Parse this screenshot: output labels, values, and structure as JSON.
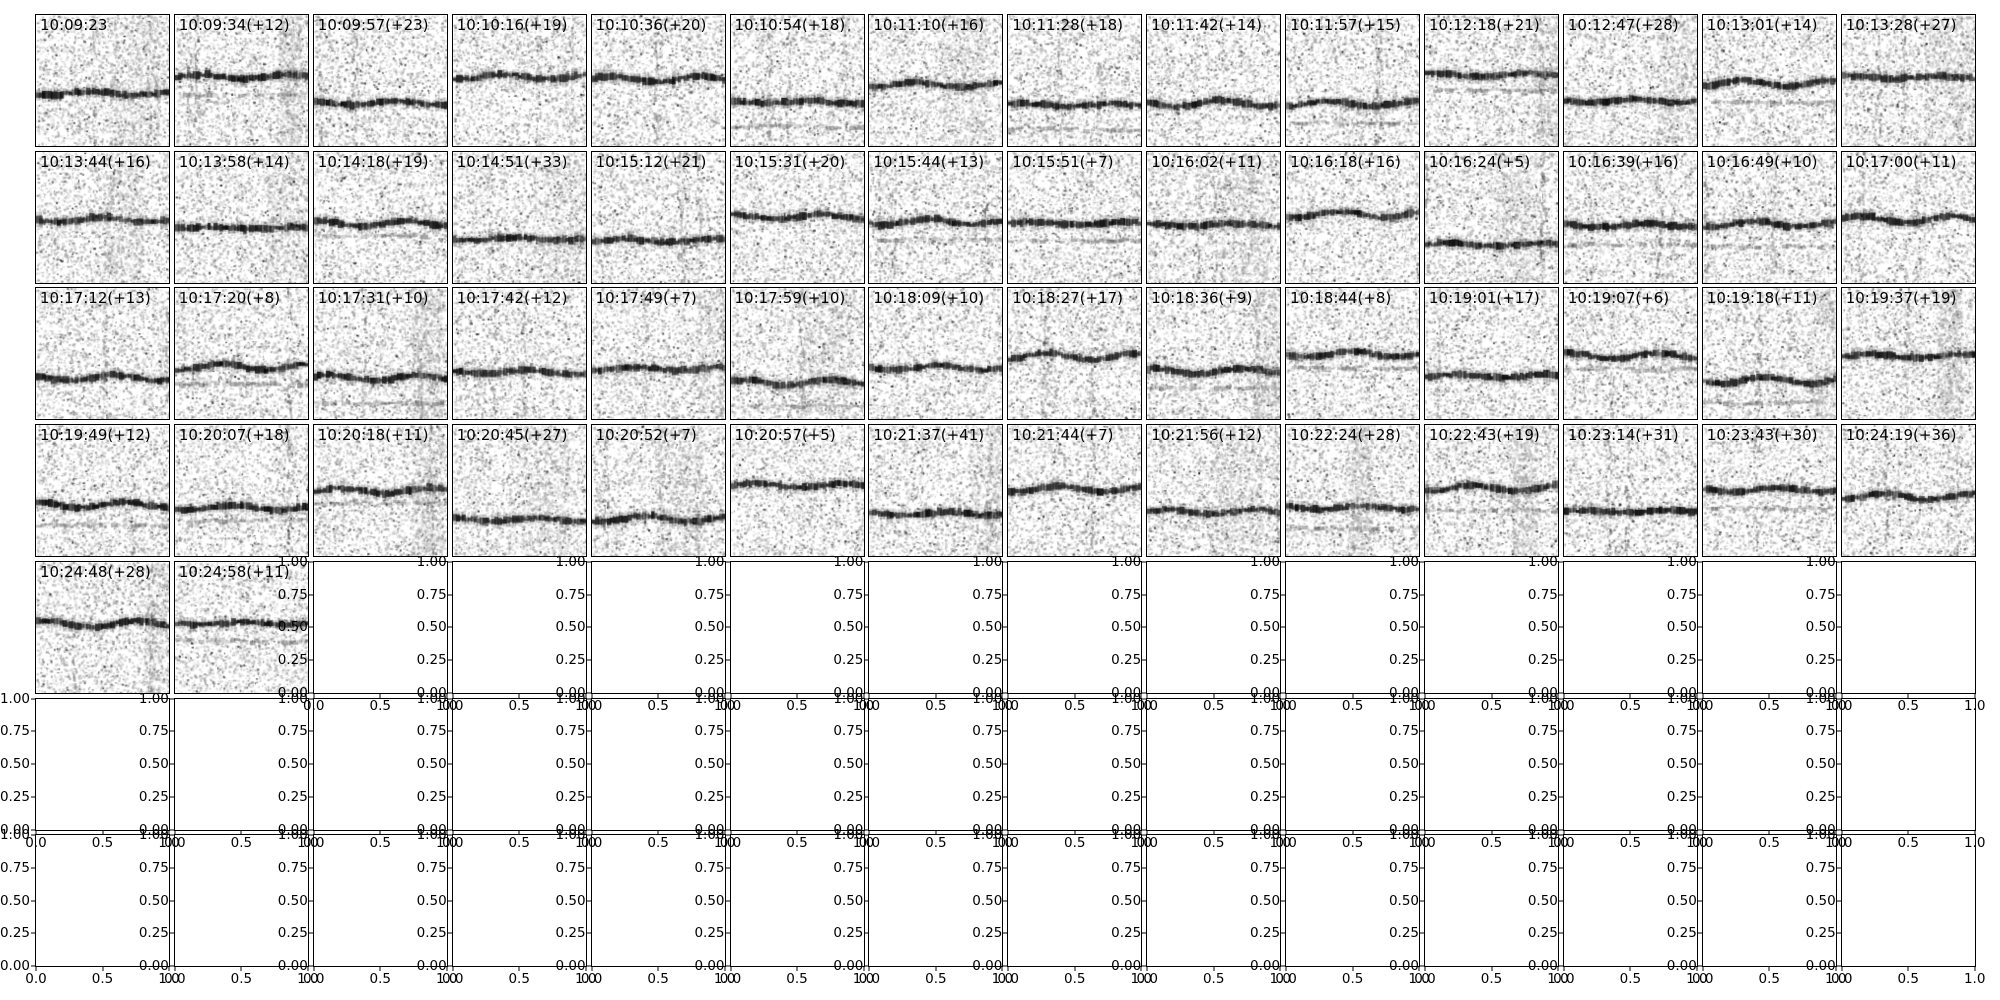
{
  "figure": {
    "background_color": "#ffffff",
    "axes_border_color": "#000000",
    "text_color": "#000000",
    "grid": {
      "rows": 7,
      "cols": 14
    },
    "filled_panel_count": 58,
    "empty_axes_count": 40
  },
  "chart_data": {
    "type": "heatmap",
    "subtype": "spectrogram-thumbnail-grid",
    "title": "",
    "xlabel": "",
    "ylabel": "",
    "grid": {
      "rows": 7,
      "cols": 14
    },
    "panels": [
      "10:09:23",
      "10:09:34(+12)",
      "10:09:57(+23)",
      "10:10:16(+19)",
      "10:10:36(+20)",
      "10:10:54(+18)",
      "10:11:10(+16)",
      "10:11:28(+18)",
      "10:11:42(+14)",
      "10:11:57(+15)",
      "10:12:18(+21)",
      "10:12:47(+28)",
      "10:13:01(+14)",
      "10:13:28(+27)",
      "10:13:44(+16)",
      "10:13:58(+14)",
      "10:14:18(+19)",
      "10:14:51(+33)",
      "10:15:12(+21)",
      "10:15:31(+20)",
      "10:15:44(+13)",
      "10:15:51(+7)",
      "10:16:02(+11)",
      "10:16:18(+16)",
      "10:16:24(+5)",
      "10:16:39(+16)",
      "10:16:49(+10)",
      "10:17:00(+11)",
      "10:17:12(+13)",
      "10:17:20(+8)",
      "10:17:31(+10)",
      "10:17:42(+12)",
      "10:17:49(+7)",
      "10:17:59(+10)",
      "10:18:09(+10)",
      "10:18:27(+17)",
      "10:18:36(+9)",
      "10:18:44(+8)",
      "10:19:01(+17)",
      "10:19:07(+6)",
      "10:19:18(+11)",
      "10:19:37(+19)",
      "10:19:49(+12)",
      "10:20:07(+18)",
      "10:20:18(+11)",
      "10:20:45(+27)",
      "10:20:52(+7)",
      "10:20:57(+5)",
      "10:21:37(+41)",
      "10:21:44(+7)",
      "10:21:56(+12)",
      "10:22:24(+28)",
      "10:22:43(+19)",
      "10:23:14(+31)",
      "10:23:43(+30)",
      "10:24:19(+36)",
      "10:24:48(+28)",
      "10:24:58(+11)"
    ],
    "empty_axes": {
      "y_tick_labels": [
        "1.00",
        "0.75",
        "0.50",
        "0.25",
        "0.00"
      ],
      "x_tick_labels": [
        "0.0",
        "0.5",
        "1.0"
      ],
      "x_range": [
        0.0,
        1.0
      ],
      "y_range": [
        0.0,
        1.0
      ]
    }
  }
}
